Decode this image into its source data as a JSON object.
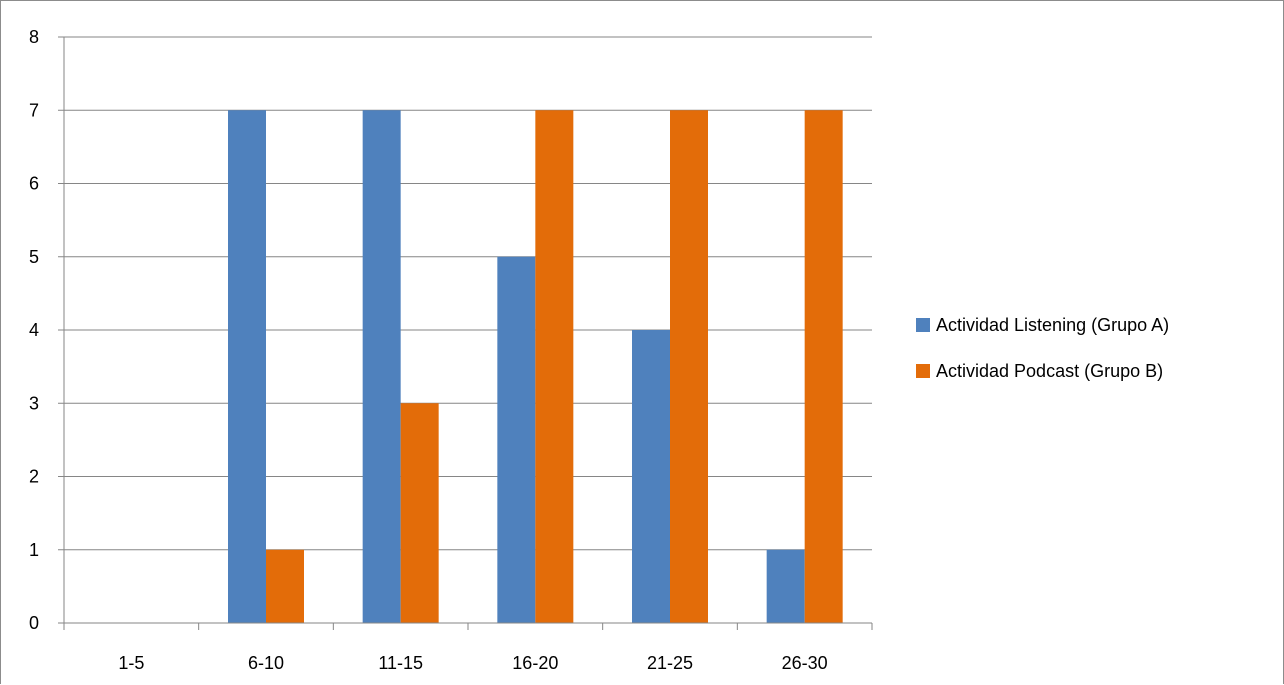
{
  "chart_data": {
    "type": "bar",
    "title": "",
    "xlabel": "",
    "ylabel": "",
    "categories": [
      "1-5",
      "6-10",
      "11-15",
      "16-20",
      "21-25",
      "26-30"
    ],
    "series": [
      {
        "name": "Actividad Listening (Grupo A)",
        "color": "#4f81bd",
        "values": [
          0,
          7,
          7,
          5,
          4,
          1
        ]
      },
      {
        "name": "Actividad Podcast (Grupo B)",
        "color": "#e36c09",
        "values": [
          0,
          1,
          3,
          7,
          7,
          7
        ]
      }
    ],
    "ylim": [
      0,
      8
    ],
    "yticks": [
      0,
      1,
      2,
      3,
      4,
      5,
      6,
      7,
      8
    ],
    "grid": true,
    "legend_position": "right"
  }
}
